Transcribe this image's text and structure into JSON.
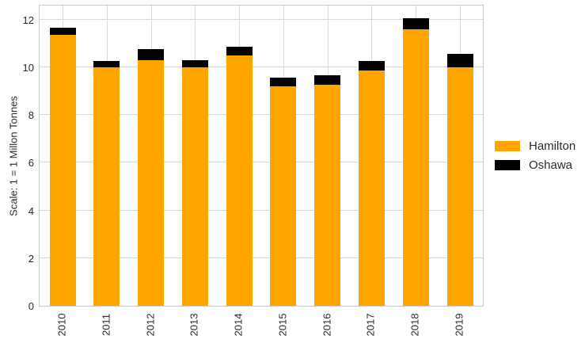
{
  "chart_data": {
    "type": "bar",
    "stacked": true,
    "categories": [
      "2010",
      "2011",
      "2012",
      "2013",
      "2014",
      "2015",
      "2016",
      "2017",
      "2018",
      "2019"
    ],
    "series": [
      {
        "name": "Hamilton",
        "color": "#FFA500",
        "values": [
          11.35,
          10.0,
          10.3,
          10.0,
          10.5,
          9.2,
          9.25,
          9.85,
          11.6,
          10.0
        ]
      },
      {
        "name": "Oshawa",
        "color": "#000000",
        "values": [
          0.3,
          0.25,
          0.45,
          0.3,
          0.35,
          0.35,
          0.4,
          0.4,
          0.45,
          0.55
        ]
      }
    ],
    "totals": [
      11.65,
      10.25,
      10.75,
      10.3,
      10.85,
      9.55,
      9.65,
      10.25,
      12.05,
      10.55
    ],
    "title": "",
    "xlabel": "",
    "ylabel": "Scale: 1 = 1 Millon Tonnes",
    "ylim": [
      0,
      12.65
    ],
    "yticks": [
      "0",
      "2",
      "4",
      "6",
      "8",
      "10",
      "12"
    ],
    "grid": true,
    "legend_position": "right-center"
  },
  "legend": {
    "items": [
      {
        "label": "Hamilton",
        "color": "#FFA500"
      },
      {
        "label": "Oshawa",
        "color": "#000000"
      }
    ]
  },
  "colors": {
    "background": "#ffffff",
    "gridline": "#d9d9d9",
    "plot_border": "#c9c9c9",
    "tick_text": "#2b2b2b",
    "hamilton": "#FFA500",
    "oshawa": "#000000"
  }
}
